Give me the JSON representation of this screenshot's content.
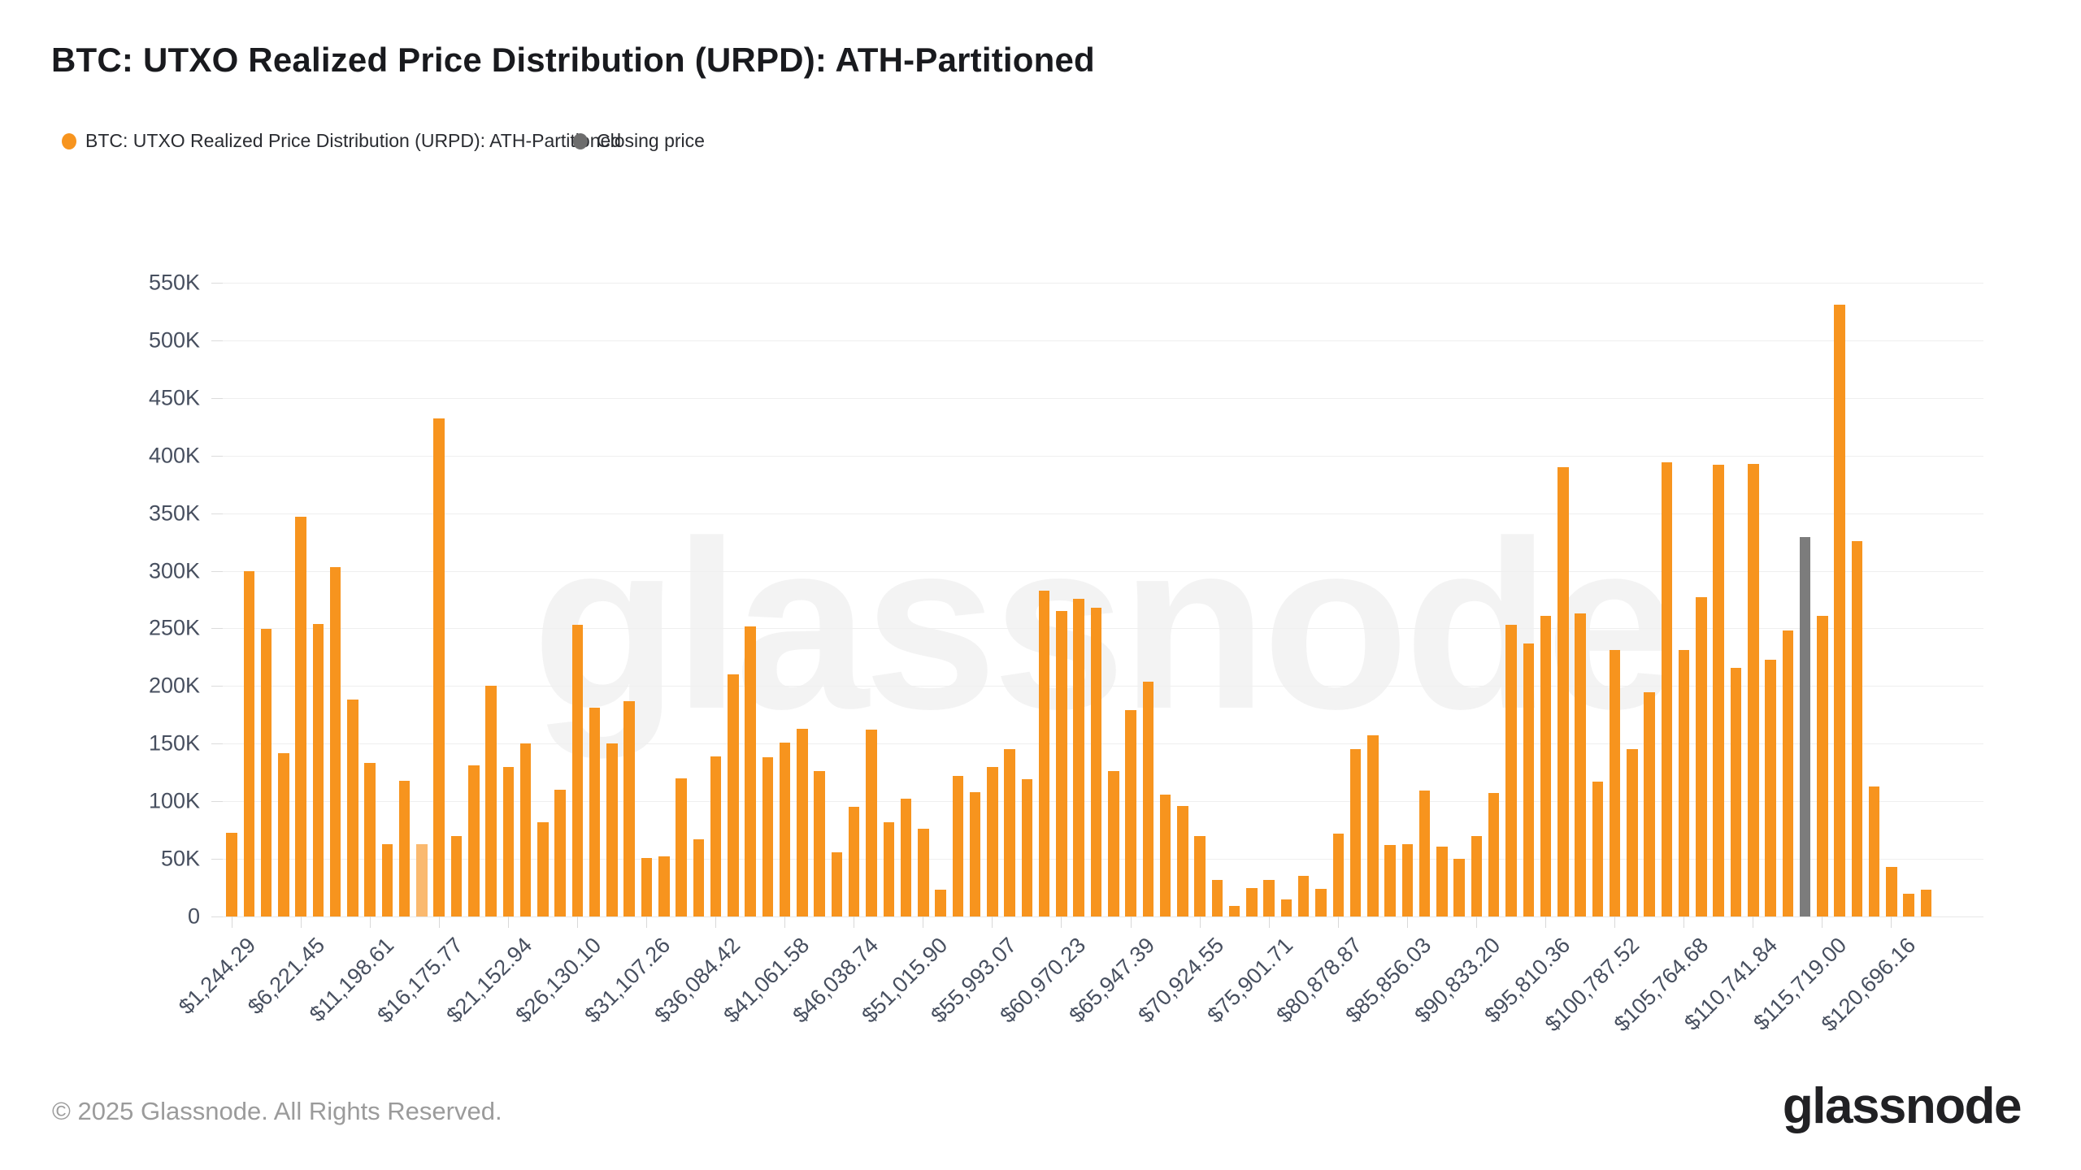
{
  "title": "BTC: UTXO Realized Price Distribution (URPD): ATH-Partitioned",
  "legend": [
    {
      "label": "BTC: UTXO Realized Price Distribution (URPD): ATH-Partitioned",
      "color": "#F7941E"
    },
    {
      "label": "Closing price",
      "color": "#6D6D6D"
    }
  ],
  "watermark": "glassnode",
  "footer": {
    "copyright": "© 2025 Glassnode. All Rights Reserved.",
    "logo": "glassnode"
  },
  "colors": {
    "bar": "#F7941E",
    "bar_highlight": "#FAB96F",
    "closing_price_bar": "#7C7C7C",
    "gridline": "#efefef",
    "axis_text": "#474f5f"
  },
  "chart_data": {
    "type": "bar",
    "title": "BTC: UTXO Realized Price Distribution (URPD): ATH-Partitioned",
    "xlabel": "",
    "ylabel": "",
    "ylim": [
      0,
      550000
    ],
    "grid": true,
    "legend_position": "top-left",
    "x_label_rotation": -45,
    "y_tick_labels": [
      "0",
      "50K",
      "100K",
      "150K",
      "200K",
      "250K",
      "300K",
      "350K",
      "400K",
      "450K",
      "500K",
      "550K"
    ],
    "x_tick_every": 4,
    "x_tick_labels": [
      "$1,244.29",
      "$6,221.45",
      "$11,198.61",
      "$16,175.77",
      "$21,152.94",
      "$26,130.10",
      "$31,107.26",
      "$36,084.42",
      "$41,061.58",
      "$46,038.74",
      "$51,015.90",
      "$55,993.07",
      "$60,970.23",
      "$65,947.39",
      "$70,924.55",
      "$75,901.71",
      "$80,878.87",
      "$85,856.03",
      "$90,833.20",
      "$95,810.36",
      "$100,787.52",
      "$105,764.68",
      "$110,741.84",
      "$115,719.00",
      "$120,696.16"
    ],
    "values": [
      73000,
      300000,
      250000,
      142000,
      347000,
      254000,
      303000,
      188000,
      133000,
      63000,
      118000,
      63000,
      432000,
      70000,
      131000,
      200000,
      130000,
      150000,
      82000,
      110000,
      253000,
      181000,
      150000,
      187000,
      51000,
      52000,
      120000,
      67000,
      139000,
      210000,
      252000,
      138000,
      151000,
      163000,
      126000,
      56000,
      95000,
      162000,
      82000,
      102000,
      76000,
      23000,
      122000,
      108000,
      130000,
      145000,
      119000,
      283000,
      265000,
      276000,
      268000,
      126000,
      179000,
      204000,
      106000,
      96000,
      70000,
      32000,
      9000,
      25000,
      32000,
      15000,
      35000,
      24000,
      72000,
      145000,
      157000,
      62000,
      63000,
      109000,
      61000,
      50000,
      70000,
      107000,
      253000,
      237000,
      261000,
      390000,
      263000,
      117000,
      231000,
      145000,
      195000,
      394000,
      231000,
      277000,
      392000,
      216000,
      393000,
      223000,
      248000,
      329000,
      261000,
      531000,
      326000,
      113000,
      43000,
      20000,
      23000
    ],
    "highlighted_bar_index": 11,
    "closing_price_bar_index": 91,
    "series_name": "BTC: UTXO Realized Price Distribution (URPD): ATH-Partitioned",
    "closing_price_series_name": "Closing price"
  }
}
